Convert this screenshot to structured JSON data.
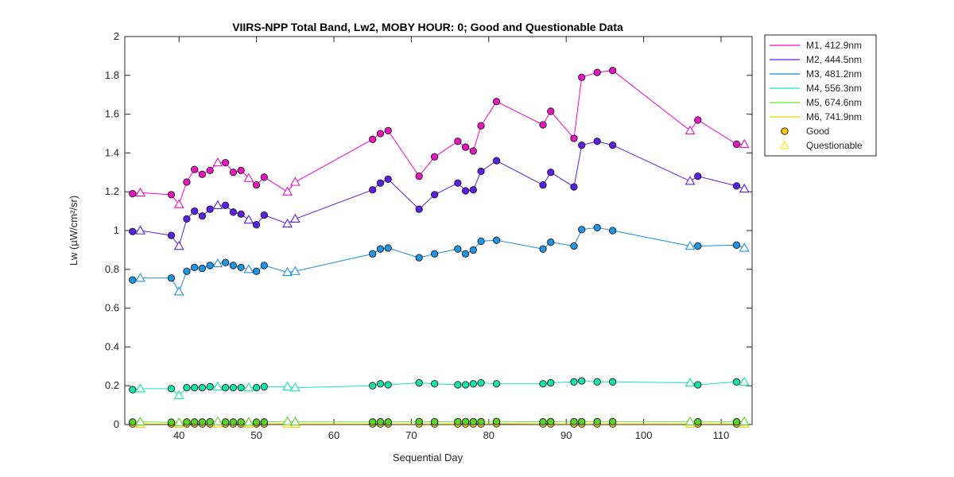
{
  "chart_data": {
    "type": "line",
    "title": "VIIRS-NPP Total Band,  Lw2, MOBY HOUR: 0;  Good and Questionable Data",
    "xlabel": "Sequential Day",
    "ylabel": "Lw (µW/cm²/sr)",
    "xlim": [
      33,
      114
    ],
    "ylim": [
      0,
      2
    ],
    "xticks": [
      40,
      50,
      60,
      70,
      80,
      90,
      100,
      110
    ],
    "yticks": [
      0,
      0.2,
      0.4,
      0.6,
      0.8,
      1,
      1.2,
      1.4,
      1.6,
      1.8,
      2
    ],
    "x": [
      34,
      35,
      39,
      40,
      41,
      42,
      43,
      44,
      45,
      46,
      47,
      48,
      49,
      50,
      51,
      54,
      55,
      65,
      66,
      67,
      71,
      73,
      76,
      77,
      78,
      79,
      81,
      87,
      88,
      91,
      92,
      94,
      96,
      106,
      107,
      112,
      113
    ],
    "quality": [
      "G",
      "Q",
      "G",
      "Q",
      "G",
      "G",
      "G",
      "G",
      "Q",
      "G",
      "G",
      "G",
      "Q",
      "G",
      "G",
      "Q",
      "Q",
      "G",
      "G",
      "G",
      "G",
      "G",
      "G",
      "G",
      "G",
      "G",
      "G",
      "G",
      "G",
      "G",
      "G",
      "G",
      "G",
      "Q",
      "G",
      "G",
      "Q"
    ],
    "series": [
      {
        "name": "M1, 412.9nm",
        "color": "#ff00cc",
        "marker_color": "#e815c0",
        "values": [
          1.19,
          1.195,
          1.185,
          1.135,
          1.25,
          1.315,
          1.29,
          1.31,
          1.35,
          1.35,
          1.3,
          1.31,
          1.27,
          1.235,
          1.275,
          1.2,
          1.25,
          1.47,
          1.5,
          1.515,
          1.28,
          1.38,
          1.46,
          1.43,
          1.41,
          1.54,
          1.665,
          1.545,
          1.615,
          1.475,
          1.79,
          1.815,
          1.825,
          1.515,
          1.57,
          1.445,
          1.445
        ]
      },
      {
        "name": "M2, 444.5nm",
        "color": "#5a1ee6",
        "marker_color": "#5a1ee6",
        "values": [
          0.995,
          1.0,
          0.975,
          0.92,
          1.06,
          1.1,
          1.075,
          1.11,
          1.13,
          1.13,
          1.095,
          1.085,
          1.055,
          1.03,
          1.08,
          1.035,
          1.06,
          1.21,
          1.245,
          1.265,
          1.11,
          1.185,
          1.245,
          1.205,
          1.21,
          1.305,
          1.36,
          1.235,
          1.3,
          1.225,
          1.44,
          1.46,
          1.44,
          1.255,
          1.28,
          1.23,
          1.215
        ]
      },
      {
        "name": "M3, 481.2nm",
        "color": "#1a8cd8",
        "marker_color": "#1e96e6",
        "values": [
          0.745,
          0.755,
          0.755,
          0.685,
          0.79,
          0.81,
          0.805,
          0.82,
          0.83,
          0.835,
          0.82,
          0.81,
          0.8,
          0.79,
          0.82,
          0.785,
          0.79,
          0.88,
          0.905,
          0.91,
          0.86,
          0.88,
          0.905,
          0.88,
          0.9,
          0.945,
          0.95,
          0.905,
          0.94,
          0.92,
          1.005,
          1.015,
          1.0,
          0.92,
          0.92,
          0.925,
          0.91
        ]
      },
      {
        "name": "M4, 556.3nm",
        "color": "#19e6b4",
        "marker_color": "#14e6aa",
        "values": [
          0.18,
          0.185,
          0.185,
          0.15,
          0.19,
          0.19,
          0.19,
          0.195,
          0.195,
          0.19,
          0.19,
          0.19,
          0.19,
          0.19,
          0.195,
          0.195,
          0.19,
          0.2,
          0.21,
          0.205,
          0.215,
          0.21,
          0.205,
          0.205,
          0.21,
          0.215,
          0.21,
          0.21,
          0.215,
          0.22,
          0.225,
          0.22,
          0.22,
          0.215,
          0.205,
          0.22,
          0.22
        ]
      },
      {
        "name": "M5, 674.6nm",
        "color": "#6ee632",
        "marker_color": "#5ad228",
        "values": [
          0.013,
          0.014,
          0.012,
          0.01,
          0.013,
          0.013,
          0.013,
          0.014,
          0.016,
          0.013,
          0.013,
          0.013,
          0.013,
          0.012,
          0.013,
          0.016,
          0.014,
          0.013,
          0.014,
          0.013,
          0.015,
          0.014,
          0.015,
          0.015,
          0.015,
          0.015,
          0.016,
          0.014,
          0.015,
          0.015,
          0.015,
          0.015,
          0.015,
          0.015,
          0.014,
          0.014,
          0.015
        ]
      },
      {
        "name": "M6, 741.9nm",
        "color": "#e6d200",
        "marker_color": "#ffcc00",
        "values": [
          0.003,
          0.003,
          0.003,
          0.002,
          0.003,
          0.003,
          0.003,
          0.003,
          0.004,
          0.003,
          0.003,
          0.003,
          0.003,
          0.003,
          0.003,
          0.004,
          0.003,
          0.003,
          0.003,
          0.003,
          0.003,
          0.003,
          0.003,
          0.003,
          0.003,
          0.003,
          0.004,
          0.003,
          0.003,
          0.003,
          0.003,
          0.003,
          0.003,
          0.003,
          0.003,
          0.003,
          0.003
        ]
      }
    ],
    "legend_position": "outside-top-right",
    "legend_markers": [
      {
        "name": "Good",
        "shape": "circle",
        "color": "#ffcc00"
      },
      {
        "name": "Questionable",
        "shape": "triangle",
        "color": "#ffe600"
      }
    ],
    "grid": false
  }
}
